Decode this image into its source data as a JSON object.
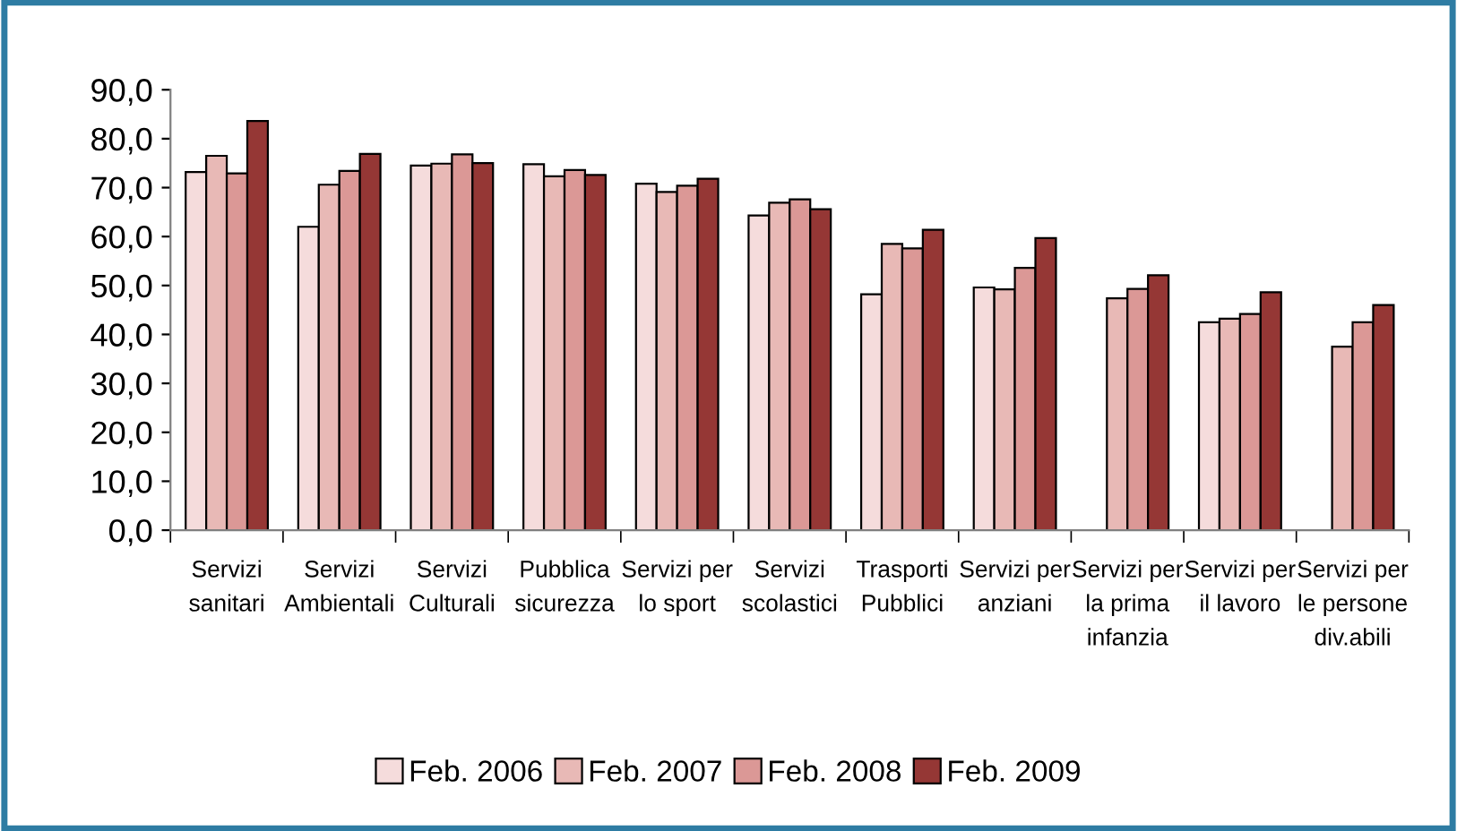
{
  "chart_data": {
    "type": "bar",
    "categories": [
      "Servizi\nsanitari",
      "Servizi\nAmbientali",
      "Servizi\nCulturali",
      "Pubblica\nsicurezza",
      "Servizi per\nlo sport",
      "Servizi\nscolastici",
      "Trasporti\nPubblici",
      "Servizi per\nanziani",
      "Servizi per\nla prima\ninfanzia",
      "Servizi per\nil lavoro",
      "Servizi per\nle persone\ndiv.abili"
    ],
    "series": [
      {
        "name": "Feb. 2006",
        "color": "#f5dcdc",
        "values": [
          73.2,
          62.0,
          74.5,
          74.8,
          70.8,
          64.3,
          48.2,
          49.6,
          null,
          42.5,
          null
        ]
      },
      {
        "name": "Feb. 2007",
        "color": "#e8b9b6",
        "values": [
          76.5,
          70.6,
          74.9,
          72.3,
          69.1,
          66.9,
          58.5,
          49.2,
          47.4,
          43.2,
          37.5
        ]
      },
      {
        "name": "Feb. 2008",
        "color": "#db9896",
        "values": [
          72.9,
          73.4,
          76.8,
          73.6,
          70.4,
          67.6,
          57.6,
          53.6,
          49.3,
          44.2,
          42.5
        ]
      },
      {
        "name": "Feb. 2009",
        "color": "#953735",
        "values": [
          83.6,
          76.9,
          75.0,
          72.6,
          71.8,
          65.6,
          61.4,
          59.7,
          52.1,
          48.6,
          46.0
        ]
      }
    ],
    "ylim": [
      0,
      90
    ],
    "yticks": [
      {
        "value": 0,
        "label": "0,0"
      },
      {
        "value": 10,
        "label": "10,0"
      },
      {
        "value": 20,
        "label": "20,0"
      },
      {
        "value": 30,
        "label": "30,0"
      },
      {
        "value": 40,
        "label": "40,0"
      },
      {
        "value": 50,
        "label": "50,0"
      },
      {
        "value": 60,
        "label": "60,0"
      },
      {
        "value": 70,
        "label": "70,0"
      },
      {
        "value": 80,
        "label": "80,0"
      },
      {
        "value": 90,
        "label": "90,0"
      }
    ],
    "grid": false,
    "legend": "bottom"
  }
}
